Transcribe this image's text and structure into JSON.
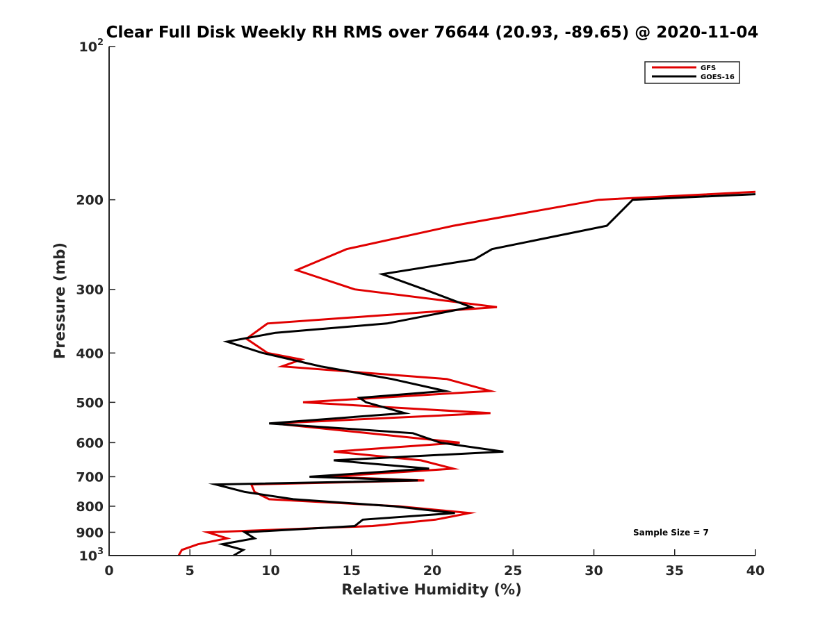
{
  "chart_data": {
    "type": "line",
    "title": "Clear Full Disk Weekly RH RMS over 76644 (20.93, -89.65) @ 2020-11-04",
    "xlabel": "Relative Humidity (%)",
    "ylabel": "Pressure (mb)",
    "xlim": [
      0,
      40
    ],
    "ylim": [
      100,
      1000
    ],
    "yscale": "log",
    "y_reversed": true,
    "grid": false,
    "legend_position": "top-right",
    "x_ticks": [
      {
        "value": 0,
        "label": "0"
      },
      {
        "value": 5,
        "label": "5"
      },
      {
        "value": 10,
        "label": "10"
      },
      {
        "value": 15,
        "label": "15"
      },
      {
        "value": 20,
        "label": "20"
      },
      {
        "value": 25,
        "label": "25"
      },
      {
        "value": 30,
        "label": "30"
      },
      {
        "value": 35,
        "label": "35"
      },
      {
        "value": 40,
        "label": "40"
      }
    ],
    "y_ticks": [
      {
        "value": 100,
        "base": "10",
        "exp": "2"
      },
      {
        "value": 200,
        "label": "200"
      },
      {
        "value": 300,
        "label": "300"
      },
      {
        "value": 400,
        "label": "400"
      },
      {
        "value": 500,
        "label": "500"
      },
      {
        "value": 600,
        "label": "600"
      },
      {
        "value": 700,
        "label": "700"
      },
      {
        "value": 800,
        "label": "800"
      },
      {
        "value": 900,
        "label": "900"
      },
      {
        "value": 1000,
        "base": "10",
        "exp": "3"
      }
    ],
    "annotation": "Sample Size = 7",
    "series": [
      {
        "name": "GFS",
        "color": "#e00000",
        "points": [
          [
            40,
            193
          ],
          [
            30.3,
            200
          ],
          [
            21.3,
            225
          ],
          [
            14.7,
            250
          ],
          [
            11.6,
            275
          ],
          [
            15.2,
            300
          ],
          [
            24.0,
            325
          ],
          [
            9.8,
            350
          ],
          [
            8.5,
            375
          ],
          [
            9.8,
            400
          ],
          [
            11.9,
            412
          ],
          [
            10.7,
            425
          ],
          [
            20.9,
            450
          ],
          [
            23.6,
            475
          ],
          [
            12.0,
            500
          ],
          [
            23.6,
            525
          ],
          [
            10.2,
            550
          ],
          [
            21.7,
            600
          ],
          [
            13.9,
            625
          ],
          [
            19.3,
            650
          ],
          [
            21.3,
            675
          ],
          [
            13.5,
            700
          ],
          [
            19.5,
            712
          ],
          [
            8.8,
            725
          ],
          [
            9.0,
            750
          ],
          [
            9.9,
            775
          ],
          [
            17.9,
            800
          ],
          [
            22.3,
            825
          ],
          [
            20.2,
            850
          ],
          [
            16.3,
            875
          ],
          [
            6.1,
            900
          ],
          [
            7.3,
            925
          ],
          [
            5.5,
            950
          ],
          [
            4.5,
            975
          ],
          [
            4.3,
            1000
          ]
        ]
      },
      {
        "name": "GOES-16",
        "color": "#000000",
        "points": [
          [
            40,
            195
          ],
          [
            32.4,
            200
          ],
          [
            30.8,
            225
          ],
          [
            23.7,
            250
          ],
          [
            22.6,
            262
          ],
          [
            16.9,
            280
          ],
          [
            19.5,
            300
          ],
          [
            22.4,
            325
          ],
          [
            17.2,
            350
          ],
          [
            10.3,
            365
          ],
          [
            7.3,
            380
          ],
          [
            9.5,
            400
          ],
          [
            13.1,
            425
          ],
          [
            17.5,
            450
          ],
          [
            20.8,
            475
          ],
          [
            15.5,
            490
          ],
          [
            15.9,
            500
          ],
          [
            18.3,
            525
          ],
          [
            9.9,
            550
          ],
          [
            18.8,
            575
          ],
          [
            20.5,
            600
          ],
          [
            24.4,
            625
          ],
          [
            13.9,
            650
          ],
          [
            19.8,
            675
          ],
          [
            12.4,
            700
          ],
          [
            19.1,
            712
          ],
          [
            6.6,
            725
          ],
          [
            8.4,
            750
          ],
          [
            11.4,
            775
          ],
          [
            17.6,
            800
          ],
          [
            21.4,
            825
          ],
          [
            15.7,
            850
          ],
          [
            15.2,
            875
          ],
          [
            8.4,
            900
          ],
          [
            9.0,
            925
          ],
          [
            7.0,
            950
          ],
          [
            8.3,
            975
          ],
          [
            7.7,
            1000
          ]
        ]
      }
    ]
  }
}
